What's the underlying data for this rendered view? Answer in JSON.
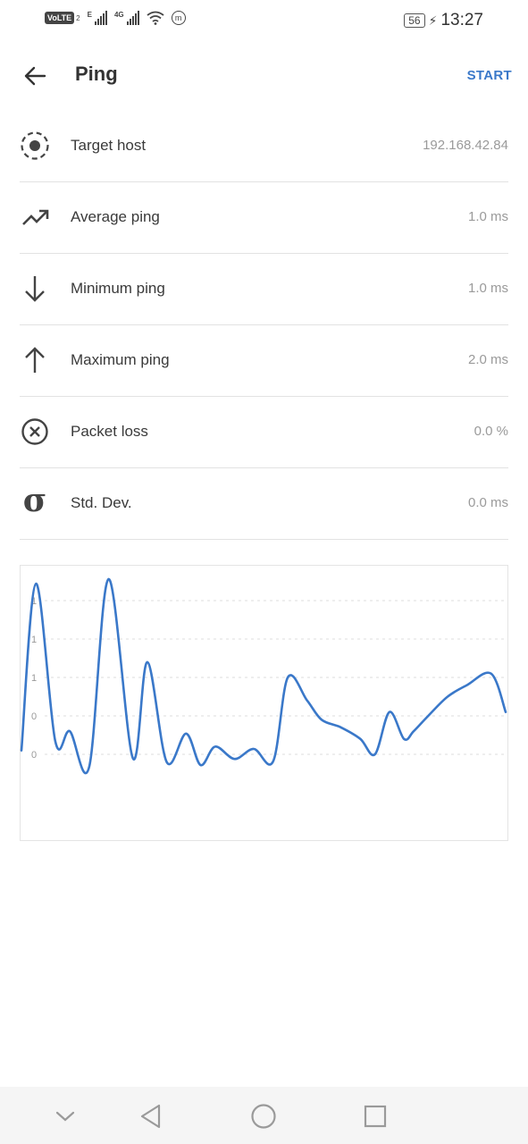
{
  "status_bar": {
    "volte": "VoLTE",
    "volte_sub": "2",
    "net1": "E",
    "net2": "4G",
    "battery": "56",
    "time": "13:27",
    "m_badge": "m"
  },
  "app_bar": {
    "title": "Ping",
    "start_label": "START"
  },
  "stats": [
    {
      "icon": "target-icon",
      "label": "Target host",
      "value": "192.168.42.84"
    },
    {
      "icon": "trending-up-icon",
      "label": "Average ping",
      "value": "1.0 ms"
    },
    {
      "icon": "arrow-down-icon",
      "label": "Minimum ping",
      "value": "1.0 ms"
    },
    {
      "icon": "arrow-up-icon",
      "label": "Maximum ping",
      "value": "2.0 ms"
    },
    {
      "icon": "cancel-circle-icon",
      "label": "Packet loss",
      "value": "0.0 %"
    },
    {
      "icon": "sigma-icon",
      "sigma_glyph": "σ",
      "label": "Std. Dev.",
      "value": "0.0 ms"
    }
  ],
  "chart_data": {
    "type": "line",
    "y_tick_labels": [
      "0",
      "0",
      "1",
      "1",
      "1"
    ],
    "y_gridlines": [
      0.0,
      0.5,
      1.0,
      1.5,
      2.0
    ],
    "ylim": [
      -0.5,
      2.5
    ],
    "grid": true,
    "series": [
      {
        "color": "#3a78c9",
        "x": [
          0,
          3,
          7,
          10,
          14,
          18,
          23,
          26,
          30,
          34,
          37,
          40,
          44,
          48,
          52,
          55,
          59,
          62,
          66,
          70,
          73,
          76,
          79,
          81,
          84,
          88,
          92,
          97,
          100
        ],
        "values": [
          0.05,
          2.22,
          0.17,
          0.3,
          -0.16,
          2.28,
          -0.05,
          1.2,
          -0.1,
          0.27,
          -0.14,
          0.1,
          -0.06,
          0.07,
          -0.09,
          1.0,
          0.7,
          0.45,
          0.35,
          0.2,
          0.0,
          0.55,
          0.2,
          0.3,
          0.5,
          0.75,
          0.9,
          1.05,
          0.55
        ]
      }
    ]
  },
  "colors": {
    "accent": "#3a78c9",
    "line": "#3a78c9",
    "divider": "#e2e2e2",
    "value_text": "#9a9a9a"
  }
}
